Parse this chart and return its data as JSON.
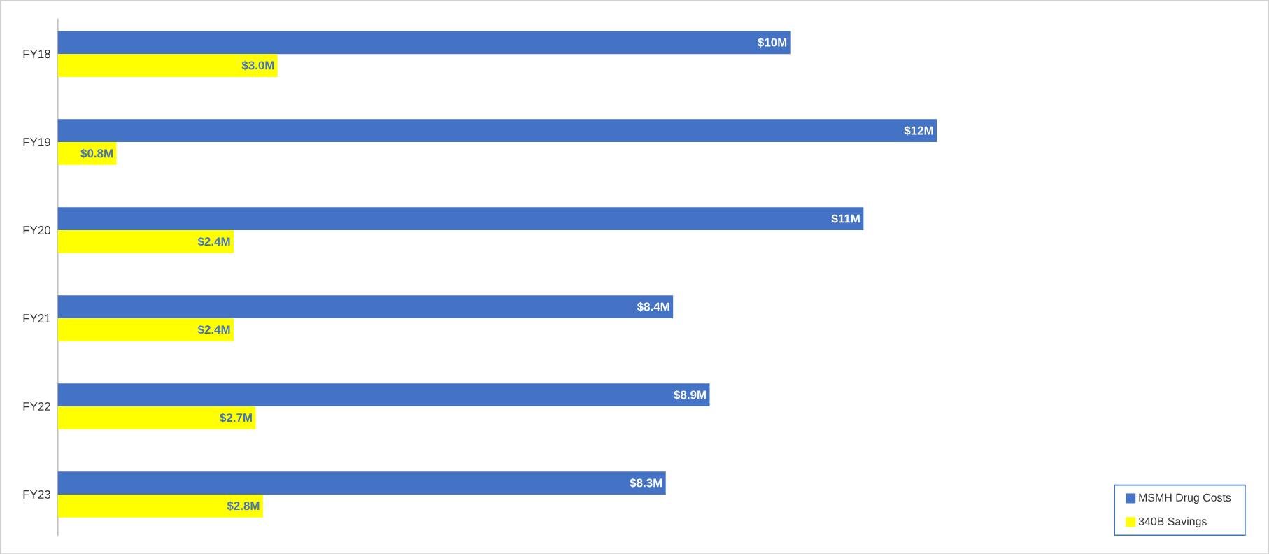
{
  "chart_data": {
    "type": "bar",
    "orientation": "horizontal",
    "categories": [
      "FY18",
      "FY19",
      "FY20",
      "FY21",
      "FY22",
      "FY23"
    ],
    "series": [
      {
        "name": "MSMH Drug Costs",
        "color": "#4472c4",
        "values": [
          10,
          12,
          11,
          8.4,
          8.9,
          8.3
        ],
        "value_labels": [
          "$10M",
          "$12M",
          "$11M",
          "$8.4M",
          "$8.9M",
          "$8.3M"
        ]
      },
      {
        "name": "340B Savings",
        "color": "#ffff00",
        "values": [
          3.0,
          0.8,
          2.4,
          2.4,
          2.7,
          2.8
        ],
        "value_labels": [
          "$3.0M",
          "$0.8M",
          "$2.4M",
          "$2.4M",
          "$2.7M",
          "$2.8M"
        ]
      }
    ],
    "xlim": [
      0,
      16.3
    ],
    "tick_labels": "y",
    "legend": "bottom right",
    "grid": false
  }
}
